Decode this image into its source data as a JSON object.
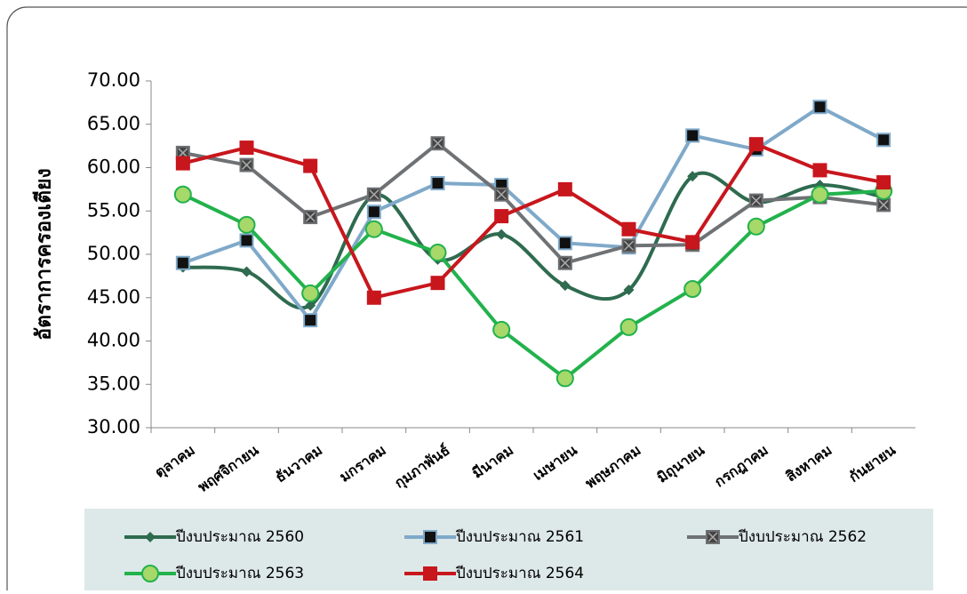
{
  "chart_data": {
    "type": "line",
    "y_label": "อัตราการครองเตียง",
    "categories": [
      "ตุลาคม",
      "พฤศจิกายน",
      "ธันวาคม",
      "มกราคม",
      "กุมภาพันธ์",
      "มีนาคม",
      "เมษายน",
      "พฤษภาคม",
      "มิถุนายน",
      "กรกฎาคม",
      "สิงหาคม",
      "กันยายน"
    ],
    "ylim": [
      30,
      70
    ],
    "yticks": [
      {
        "value": 30,
        "label": "30.00"
      },
      {
        "value": 35,
        "label": "35.00"
      },
      {
        "value": 40,
        "label": "40.00"
      },
      {
        "value": 45,
        "label": "45.00"
      },
      {
        "value": 50,
        "label": "50.00"
      },
      {
        "value": 55,
        "label": "55.00"
      },
      {
        "value": 60,
        "label": "60.00"
      },
      {
        "value": 65,
        "label": "65.00"
      },
      {
        "value": 70,
        "label": "70.00"
      }
    ],
    "series": [
      {
        "name": "ปีงบประมาณ 2560",
        "color": "#2e6b4f",
        "marker": "diamond",
        "smooth": true,
        "values": [
          48.5,
          48.0,
          44.1,
          56.8,
          49.4,
          52.3,
          46.4,
          45.9,
          59.0,
          56.0,
          58.0,
          56.6
        ]
      },
      {
        "name": "ปีงบประมาณ 2561",
        "color": "#7fa9c9",
        "marker": "square",
        "smooth": false,
        "values": [
          49.0,
          51.6,
          42.4,
          54.9,
          58.2,
          58.0,
          51.3,
          50.8,
          63.7,
          62.1,
          67.0,
          63.2
        ]
      },
      {
        "name": "ปีงบประมาณ 2562",
        "color": "#6f7275",
        "marker": "xsquare",
        "smooth": false,
        "values": [
          61.7,
          60.3,
          54.3,
          56.9,
          62.8,
          56.9,
          49.0,
          51.0,
          51.1,
          56.2,
          56.6,
          55.7
        ]
      },
      {
        "name": "ปีงบประมาณ 2563",
        "color": "#22b24c",
        "marker": "circle",
        "smooth": false,
        "values": [
          56.9,
          53.4,
          45.5,
          52.9,
          50.2,
          41.3,
          35.7,
          41.6,
          46.0,
          53.2,
          56.9,
          57.3
        ]
      },
      {
        "name": "ปีงบประมาณ 2564",
        "color": "#c8161d",
        "marker": "square",
        "smooth": false,
        "values": [
          60.5,
          62.3,
          60.2,
          45.0,
          46.7,
          54.4,
          57.5,
          52.9,
          51.4,
          62.7,
          59.7,
          58.3
        ]
      }
    ]
  }
}
